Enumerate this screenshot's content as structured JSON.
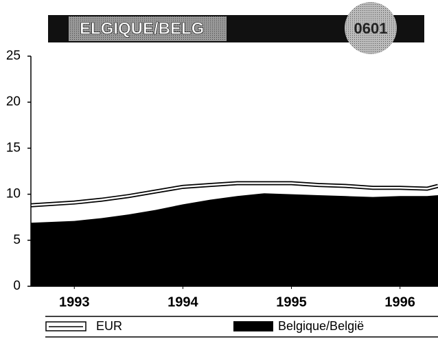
{
  "chart_data": {
    "type": "area",
    "title": "ELGIQUE/BELG",
    "badge": "0601",
    "x": [
      1992.6,
      1993,
      1993.25,
      1993.5,
      1993.75,
      1994,
      1994.25,
      1994.5,
      1994.75,
      1995,
      1995.25,
      1995.5,
      1995.75,
      1996,
      1996.25,
      1996.35
    ],
    "series": [
      {
        "name": "EUR",
        "color": "#ffffff",
        "values": [
          8.8,
          9.1,
          9.4,
          9.8,
          10.3,
          10.8,
          11.0,
          11.2,
          11.2,
          11.2,
          11.0,
          10.9,
          10.7,
          10.7,
          10.6,
          10.9
        ]
      },
      {
        "name": "Belgique/België",
        "color": "#000000",
        "values": [
          6.9,
          7.1,
          7.4,
          7.8,
          8.3,
          8.9,
          9.4,
          9.8,
          10.1,
          10.0,
          9.9,
          9.8,
          9.7,
          9.8,
          9.8,
          9.9
        ]
      }
    ],
    "xlim": [
      1992.6,
      1996.35
    ],
    "xticks": [
      1993,
      1994,
      1995,
      1996
    ],
    "ylim": [
      0,
      25
    ],
    "yticks": [
      0,
      5,
      10,
      15,
      20,
      25
    ]
  }
}
